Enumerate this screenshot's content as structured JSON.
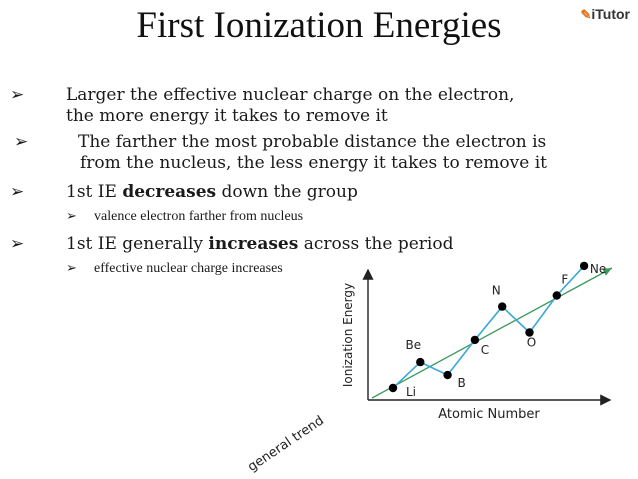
{
  "title": "First Ionization Energies",
  "logo": {
    "text": "iTutor"
  },
  "bullets": [
    {
      "line1": "Larger   the effective nuclear charge on the electron,",
      "line2": "the more energy it takes to remove it"
    },
    {
      "line1": "The farther the most probable distance the electron is",
      "line2": "from the nucleus, the less energy it takes to remove it"
    },
    {
      "pre": "1st IE ",
      "bold": "decreases",
      "post": " down the group"
    },
    {
      "text": "valence electron farther from nucleus"
    },
    {
      "pre": "1st IE generally ",
      "bold": "increases",
      "post": " across the period"
    },
    {
      "text": "effective nuclear charge increases"
    }
  ],
  "chart_data": {
    "type": "line",
    "xlabel": "Atomic Number",
    "ylabel": "Ionization Energy",
    "trend_label": "general trend",
    "points": [
      {
        "label": "Li",
        "x": 3,
        "y": 1
      },
      {
        "label": "Be",
        "x": 4,
        "y": 2.4
      },
      {
        "label": "B",
        "x": 5,
        "y": 1.7
      },
      {
        "label": "C",
        "x": 6,
        "y": 3.6
      },
      {
        "label": "N",
        "x": 7,
        "y": 5.4
      },
      {
        "label": "O",
        "x": 8,
        "y": 4.0
      },
      {
        "label": "F",
        "x": 9,
        "y": 6.0
      },
      {
        "label": "Ne",
        "x": 10,
        "y": 7.6
      }
    ],
    "line_color": "#38a8d8",
    "trend_color": "#3a9a5a"
  }
}
